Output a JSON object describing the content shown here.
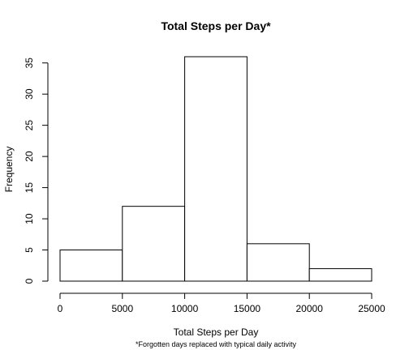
{
  "chart_data": {
    "type": "bar",
    "title": "Total Steps per Day*",
    "xlabel": "Total Steps per Day",
    "subtitle": "*Forgotten days replaced with typical daily activity",
    "ylabel": "Frequency",
    "bins": [
      {
        "start": 0,
        "end": 5000,
        "value": 5
      },
      {
        "start": 5000,
        "end": 10000,
        "value": 12
      },
      {
        "start": 10000,
        "end": 15000,
        "value": 36
      },
      {
        "start": 15000,
        "end": 20000,
        "value": 6
      },
      {
        "start": 20000,
        "end": 25000,
        "value": 2
      }
    ],
    "xlim": [
      0,
      25000
    ],
    "ylim": [
      0,
      36
    ],
    "x_ticks": [
      0,
      5000,
      10000,
      15000,
      20000,
      25000
    ],
    "x_tick_labels": [
      "0",
      "5000",
      "10000",
      "15000",
      "20000",
      "25000"
    ],
    "y_ticks": [
      0,
      5,
      10,
      15,
      20,
      25,
      30,
      35
    ],
    "y_tick_labels": [
      "0",
      "5",
      "10",
      "15",
      "20",
      "25",
      "30",
      "35"
    ],
    "grid": false,
    "colors": {
      "bar_fill": "#ffffff",
      "bar_stroke": "#000000"
    }
  }
}
